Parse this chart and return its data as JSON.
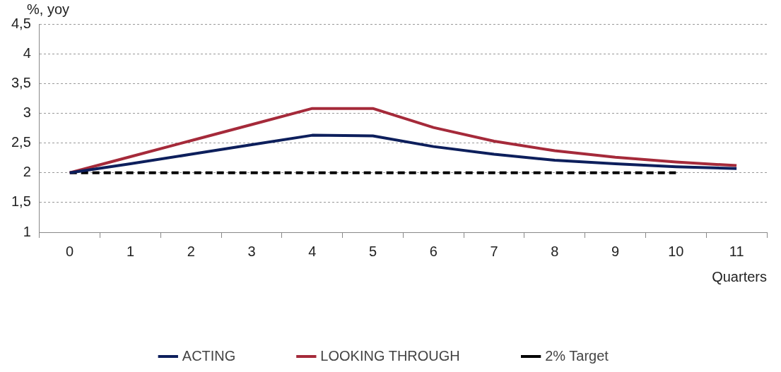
{
  "chart_data": {
    "type": "line",
    "ylabel": "%, yoy",
    "xlabel": "Quarters",
    "categories": [
      "0",
      "1",
      "2",
      "3",
      "4",
      "5",
      "6",
      "7",
      "8",
      "9",
      "10",
      "11"
    ],
    "series": [
      {
        "name": "ACTING",
        "color": "#0d1f5c",
        "values": [
          2,
          2.15,
          2.31,
          2.47,
          2.63,
          2.62,
          2.44,
          2.31,
          2.21,
          2.15,
          2.1,
          2.07
        ]
      },
      {
        "name": "LOOKING THROUGH",
        "color": "#a52a3a",
        "values": [
          2,
          2.27,
          2.54,
          2.81,
          3.08,
          3.08,
          2.76,
          2.53,
          2.37,
          2.26,
          2.18,
          2.12
        ]
      },
      {
        "name": "2% Target",
        "color": "#000000",
        "line_style": "dashed",
        "values": [
          2,
          2,
          2,
          2,
          2,
          2,
          2,
          2,
          2,
          2,
          2,
          null
        ]
      }
    ],
    "ylim": [
      1,
      4.5
    ],
    "yticks": [
      {
        "value": 1,
        "label": "1"
      },
      {
        "value": 1.5,
        "label": "1,5"
      },
      {
        "value": 2,
        "label": "2"
      },
      {
        "value": 2.5,
        "label": "2,5"
      },
      {
        "value": 3,
        "label": "3"
      },
      {
        "value": 3.5,
        "label": "3,5"
      },
      {
        "value": 4,
        "label": "4"
      },
      {
        "value": 4.5,
        "label": "4,5"
      }
    ],
    "grid": "y",
    "legend": "bottom",
    "marker": "none",
    "line_style": "solid"
  }
}
